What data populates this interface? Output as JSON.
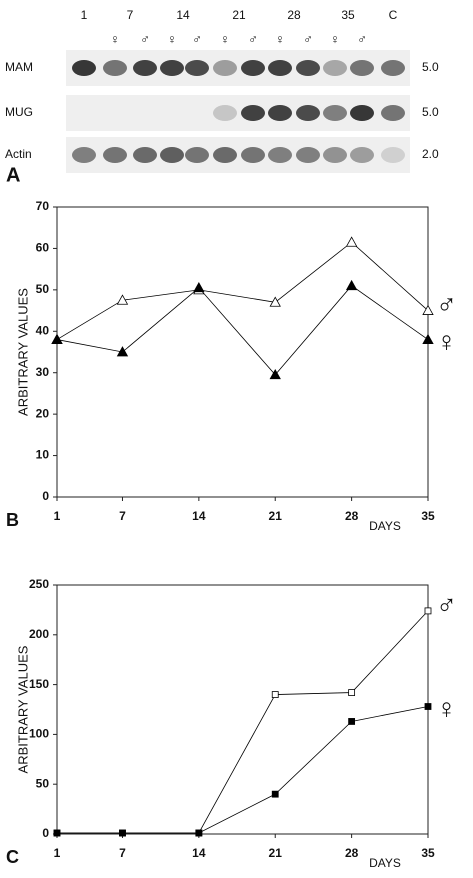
{
  "blot": {
    "label": "A",
    "lanes": [
      "1",
      "7",
      "14",
      "21",
      "28",
      "35",
      "C"
    ],
    "sexes": [
      "♀",
      "♂",
      "♀",
      "♂",
      "♀",
      "♂",
      "♀",
      "♂",
      "♀",
      "♂"
    ],
    "rows": [
      {
        "name": "MAM",
        "size": "5.0"
      },
      {
        "name": "MUG",
        "size": "5.0"
      },
      {
        "name": "Actin",
        "size": "2.0"
      }
    ]
  },
  "chart_data": [
    {
      "type": "line",
      "label": "B",
      "x_label": "DAYS",
      "y_label": "ARBITRARY VALUES",
      "x": [
        1,
        7,
        14,
        21,
        28,
        35
      ],
      "xlim": [
        1,
        35
      ],
      "xticks": [
        1,
        7,
        14,
        21,
        28,
        35
      ],
      "ylim": [
        0,
        70
      ],
      "yticks": [
        0,
        10,
        20,
        30,
        40,
        50,
        60,
        70
      ],
      "series": [
        {
          "name": "♂",
          "color": "#000000",
          "marker": "triangle",
          "filled": false,
          "values": [
            38,
            47.5,
            50,
            47,
            61.5,
            45
          ]
        },
        {
          "name": "♀",
          "color": "#000000",
          "marker": "triangle",
          "filled": true,
          "values": [
            38,
            35,
            50.5,
            29.5,
            51,
            38
          ]
        }
      ]
    },
    {
      "type": "line",
      "label": "C",
      "x_label": "DAYS",
      "y_label": "ARBITRARY VALUES",
      "x": [
        1,
        7,
        14,
        21,
        28,
        35
      ],
      "xlim": [
        1,
        35
      ],
      "xticks": [
        1,
        7,
        14,
        21,
        28,
        35
      ],
      "ylim": [
        0,
        250
      ],
      "yticks": [
        0,
        50,
        100,
        150,
        200,
        250
      ],
      "series": [
        {
          "name": "♂",
          "color": "#000000",
          "marker": "square",
          "filled": false,
          "values": [
            1,
            1,
            1,
            140,
            142,
            224
          ]
        },
        {
          "name": "♀",
          "color": "#000000",
          "marker": "square",
          "filled": true,
          "values": [
            1,
            1,
            1,
            40,
            113,
            128
          ]
        }
      ]
    }
  ]
}
